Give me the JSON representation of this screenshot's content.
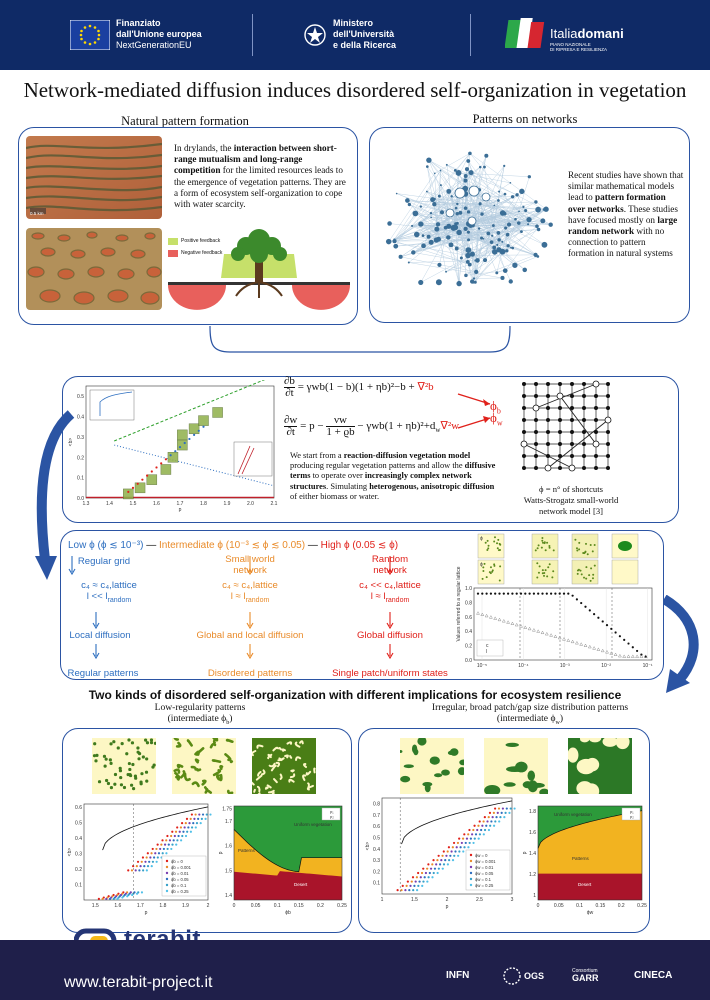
{
  "header": {
    "eu_line1": "Finanziato",
    "eu_line2": "dall'Unione europea",
    "eu_line3": "NextGenerationEU",
    "ministry_line1": "Ministero",
    "ministry_line2": "dell'Università",
    "ministry_line3": "e della Ricerca",
    "italia_brand_a": "Italia",
    "italia_brand_b": "domani",
    "italia_sub1": "PIANO NAZIONALE",
    "italia_sub2": "DI RIPRESA E RESILIENZA"
  },
  "title": "Network-mediated diffusion induces disordered self-organization in vegetation",
  "natural": {
    "heading": "Natural pattern formation",
    "text_a": "In drylands, the ",
    "text_b": "interaction between short-range mutualism and long-range competition",
    "text_c": " for the limited resources leads to the emergence of vegetation patterns. They are a form of ecosystem self-organization to cope with water scarcity.",
    "scale_label": "0.5 km",
    "legend_positive": "Positive feedback",
    "legend_negative": "Negative feedback",
    "color_positive": "#c6e06a",
    "color_negative": "#e8605c"
  },
  "networks": {
    "heading": "Patterns on networks",
    "t1": "Recent studies have shown that similar mathematical models lead to ",
    "t2": "pattern formation over networks",
    "t3": ". These studies have focused mostly on ",
    "t4": "large random network",
    "t5": " with no connection to pattern formation in natural systems"
  },
  "model": {
    "eq1_lhs_num": "∂b",
    "eq1_lhs_den": "∂t",
    "eq1_rhs": "= γwb(1 − b)(1 + ηb)²−b + ",
    "eq1_diff": "∇²b",
    "eq2_lhs_num": "∂w",
    "eq2_lhs_den": "∂t",
    "eq2_rhs_a": "= p − ",
    "eq2_frac_num": "νw",
    "eq2_frac_den": "1 + ϱb",
    "eq2_rhs_b": " − γwb(1 + ηb)²+d",
    "eq2_sub": "w",
    "eq2_diff": "∇²w",
    "phi_b": "ϕ",
    "phi_b_sub": "b",
    "phi_w": "ϕ",
    "phi_w_sub": "w",
    "desc_1": "We start from a ",
    "desc_2": "reaction-diffusion vegetation model",
    "desc_3": " producing regular vegetation patterns and allow the ",
    "desc_4": "diffusive terms",
    "desc_5": " to operate over ",
    "desc_6": "increasingly complex network structures",
    "desc_7": ". Simulating ",
    "desc_8": "heterogenous, anisotropic diffusion",
    "desc_9": " of either biomass or water.",
    "phi_caption": "ϕ = n° of shortcuts",
    "ws_caption_1": "Watts-Strogatz small-world",
    "ws_caption_2": "network model [3]",
    "plot_xlabel": "p",
    "plot_ylabel": "<b>"
  },
  "bifurcation_chart": {
    "type": "scatter",
    "xlabel": "p",
    "ylabel": "<b>",
    "xticks": [
      "1.3",
      "1.4",
      "1.5",
      "1.6",
      "1.7",
      "1.8",
      "1.9",
      "2.0",
      "2.1"
    ],
    "yticks": [
      "0.0",
      "0.1",
      "0.2",
      "0.3",
      "0.4",
      "0.5"
    ],
    "xlim": [
      1.3,
      2.1
    ],
    "ylim": [
      0,
      0.55
    ]
  },
  "phases": {
    "low_head": "Low ϕ (ϕ ≲ 10⁻³)",
    "dash1": "—",
    "mid_head": "Intermediate ϕ (10⁻³ ≲ ϕ ≲ 0.05)",
    "dash2": "—",
    "high_head": "High ϕ (0.05 ≲ ϕ)",
    "low_net": "Regular grid",
    "mid_net": "Small world network",
    "high_net": "Random network",
    "low_c": "c₄ ≈ c₄,lattice",
    "low_l": "l << l",
    "low_l_sub": "random",
    "mid_c": "c₄ ≈ c₄,lattice",
    "mid_l": "l ≈ l",
    "mid_l_sub": "random",
    "high_c": "c₄ << c₄,lattice",
    "high_l": "l ≈ l",
    "high_l_sub": "random",
    "low_diff": "Local diffusion",
    "mid_diff": "Global and local diffusion",
    "high_diff": "Global diffusion",
    "low_res": "Regular patterns",
    "mid_res": "Disordered patterns",
    "high_res": "Single patch/uniform states",
    "plot_ylabel": "Values referred to a regular lattice",
    "plot_xticks": [
      "10⁻⁵",
      "10⁻⁴",
      "10⁻³",
      "10⁻²",
      "10⁻¹"
    ],
    "plot_yticks": [
      "0.0",
      "0.2",
      "0.4",
      "0.6",
      "0.8",
      "1.0"
    ],
    "legend_c": "c",
    "legend_l": "l",
    "inset_phi_b": "ϕ",
    "inset_phi_w": "ϕ"
  },
  "two_kinds": {
    "heading": "Two kinds of disordered self-organization with different implications for ecosystem resilience",
    "left_heading_1": "Low-regularity patterns",
    "left_heading_2": "(intermediate ϕ",
    "left_heading_sub": "b",
    "left_heading_close": ")",
    "right_heading_1": "Irregular, broad patch/gap size distribution patterns",
    "right_heading_2": "(intermediate ϕ",
    "right_heading_sub": "w",
    "right_heading_close": ")"
  },
  "left_plot": {
    "xlabel": "p",
    "ylabel": "<b>",
    "xticks": [
      "1.5",
      "1.6",
      "1.7",
      "1.8",
      "1.9",
      "2"
    ],
    "yticks": [
      "0.1",
      "0.2",
      "0.3",
      "0.4",
      "0.5",
      "0.6"
    ],
    "legend": [
      "ϕb = 0",
      "ϕb = 0.001",
      "ϕb = 0.01",
      "ϕb = 0.05",
      "ϕb = 0.1",
      "ϕb = 0.25"
    ],
    "colors": [
      "#e0201a",
      "#e98b2a",
      "#7a3fb0",
      "#2e6fc0",
      "#36a0c8",
      "#50c0e8"
    ]
  },
  "left_phase": {
    "xlabel": "ϕb",
    "ylabel": "p",
    "xticks": [
      "0",
      "0.05",
      "0.1",
      "0.15",
      "0.2",
      "0.25"
    ],
    "yticks": [
      "1.4",
      "1.5",
      "1.6",
      "1.7",
      "1.75"
    ],
    "region_top": "Uniform vegetation",
    "region_mid": "Patterns",
    "region_bot": "Desert",
    "legend_a": "p₁",
    "legend_b": "p₂"
  },
  "right_plot": {
    "xlabel": "p",
    "ylabel": "<b>",
    "xticks": [
      "1",
      "1.5",
      "2",
      "2.5",
      "3"
    ],
    "yticks": [
      "0.1",
      "0.2",
      "0.3",
      "0.4",
      "0.5",
      "0.6",
      "0.7",
      "0.8"
    ],
    "legend": [
      "ϕw = 0",
      "ϕw = 0.001",
      "ϕw = 0.01",
      "ϕw = 0.05",
      "ϕw = 0.1",
      "ϕw = 0.25"
    ]
  },
  "right_phase": {
    "xlabel": "ϕw",
    "ylabel": "p",
    "xticks": [
      "0",
      "0.05",
      "0.1",
      "0.15",
      "0.2",
      "0.25"
    ],
    "yticks": [
      "1",
      "1.2",
      "1.4",
      "1.6",
      "1.8"
    ],
    "region_top": "Uniform vegetation",
    "region_mid": "Patterns",
    "region_bot": "Desert",
    "legend_a": "p₁",
    "legend_b": "p₂"
  },
  "footer": {
    "brand": "terabit",
    "url": "www.terabit-project.it",
    "logo_infn": "INFN",
    "logo_ogs": "OGS",
    "logo_garr_1": "Consortium",
    "logo_garr_2": "GARR",
    "logo_cineca": "CINECA"
  }
}
